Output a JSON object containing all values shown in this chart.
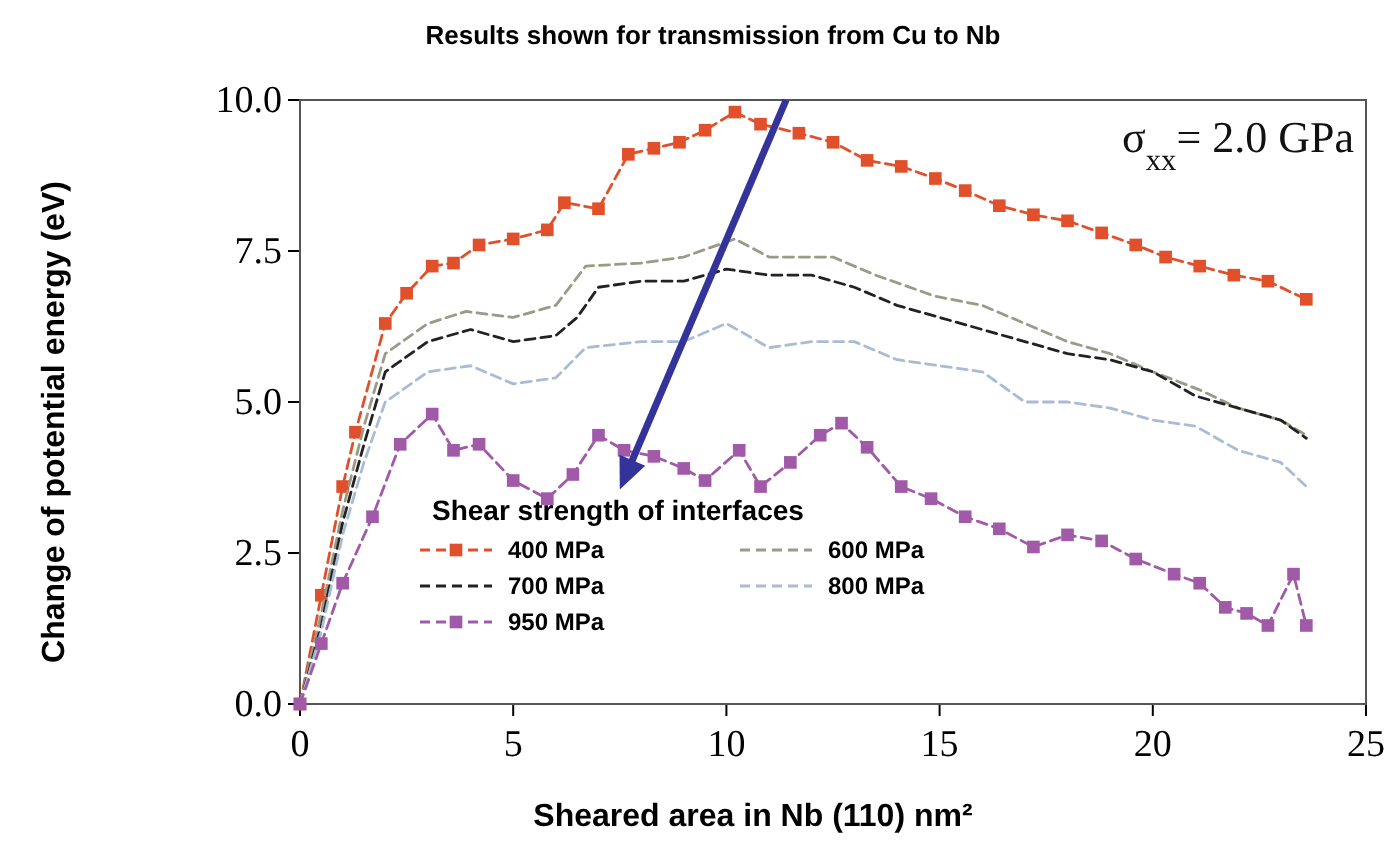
{
  "chart_data": {
    "type": "line",
    "title": "Results shown for transmission from Cu to Nb",
    "xlabel": "Sheared area in Nb (110)  nm²",
    "ylabel": "Change of potential energy (eV)",
    "legend_title": "Shear strength of interfaces",
    "legend": "bottom left",
    "line_style": "dashed",
    "annotations": [
      "σ$_{xx}$= 2.0 GPa"
    ],
    "xlim": [
      0,
      25
    ],
    "xticks": [
      0,
      5,
      10,
      15,
      20,
      25
    ],
    "ylim": [
      0,
      10
    ],
    "yticks": [
      {
        "value": 0,
        "label": "0.0"
      },
      {
        "value": 2.5,
        "label": "2.5"
      },
      {
        "value": 5,
        "label": "5.0"
      },
      {
        "value": 7.5,
        "label": "7.5"
      },
      {
        "value": 10,
        "label": "10.0"
      }
    ],
    "series": [
      {
        "name": "400 MPa",
        "color": "#e0502a",
        "marker": "square",
        "x": [
          0,
          0.5,
          1,
          1.3,
          2,
          2.5,
          3.1,
          3.6,
          4.2,
          5,
          5.8,
          6.2,
          7,
          7.7,
          8.3,
          8.9,
          9.5,
          10.2,
          10.8,
          11.7,
          12.5,
          13.3,
          14.1,
          14.9,
          15.6,
          16.4,
          17.2,
          18,
          18.8,
          19.6,
          20.3,
          21.1,
          21.9,
          22.7,
          23.6
        ],
        "values": [
          0,
          1.8,
          3.6,
          4.5,
          6.3,
          6.8,
          7.25,
          7.3,
          7.6,
          7.7,
          7.85,
          8.3,
          8.2,
          9.1,
          9.2,
          9.3,
          9.5,
          9.8,
          9.6,
          9.45,
          9.3,
          9.0,
          8.9,
          8.7,
          8.5,
          8.25,
          8.1,
          8.0,
          7.8,
          7.6,
          7.4,
          7.25,
          7.1,
          7.0,
          6.7
        ]
      },
      {
        "name": "600 MPa",
        "color": "#9a9a86",
        "marker": "none",
        "x": [
          0,
          0.5,
          1,
          1.5,
          2,
          3,
          3.9,
          5,
          6,
          6.7,
          8,
          9,
          10.2,
          11,
          12.5,
          13.5,
          14.9,
          16,
          17,
          18,
          19,
          20,
          21.1,
          22,
          23,
          23.6
        ],
        "values": [
          0,
          1.5,
          3.2,
          4.6,
          5.8,
          6.3,
          6.5,
          6.4,
          6.6,
          7.25,
          7.3,
          7.4,
          7.7,
          7.4,
          7.4,
          7.1,
          6.75,
          6.6,
          6.3,
          6.0,
          5.8,
          5.5,
          5.2,
          4.9,
          4.7,
          4.45
        ]
      },
      {
        "name": "700 MPa",
        "color": "#222222",
        "marker": "none",
        "x": [
          0,
          0.5,
          1,
          1.5,
          2,
          3,
          4,
          5,
          6,
          6.5,
          7,
          8,
          9,
          10,
          11,
          12,
          13,
          14,
          15,
          16,
          17,
          18,
          19,
          20,
          21,
          22,
          23,
          23.6
        ],
        "values": [
          0,
          1.3,
          3.0,
          4.3,
          5.5,
          6.0,
          6.2,
          6.0,
          6.1,
          6.4,
          6.9,
          7.0,
          7.0,
          7.2,
          7.1,
          7.1,
          6.9,
          6.6,
          6.4,
          6.2,
          6.0,
          5.8,
          5.7,
          5.5,
          5.1,
          4.9,
          4.7,
          4.4
        ]
      },
      {
        "name": "800 MPa",
        "color": "#a8bcd6",
        "marker": "none",
        "x": [
          0,
          0.5,
          1,
          1.5,
          2,
          3,
          4,
          5,
          6,
          6.7,
          8,
          9,
          10,
          11,
          12,
          13,
          14,
          15,
          16,
          17,
          18,
          19,
          20,
          21,
          22,
          23,
          23.6
        ],
        "values": [
          0,
          1.2,
          2.8,
          4.0,
          5.0,
          5.5,
          5.6,
          5.3,
          5.4,
          5.9,
          6.0,
          6.0,
          6.3,
          5.9,
          6.0,
          6.0,
          5.7,
          5.6,
          5.5,
          5.0,
          5.0,
          4.9,
          4.7,
          4.6,
          4.2,
          4.0,
          3.6
        ]
      },
      {
        "name": "950 MPa",
        "color": "#a05aa8",
        "marker": "square",
        "x": [
          0,
          0.5,
          1,
          1.7,
          2.35,
          3.1,
          3.6,
          4.2,
          5,
          5.8,
          6.4,
          7,
          7.6,
          8.3,
          9,
          9.5,
          10.3,
          10.8,
          11.5,
          12.2,
          12.7,
          13.3,
          14.1,
          14.8,
          15.6,
          16.4,
          17.2,
          18,
          18.8,
          19.6,
          20.5,
          21.1,
          21.7,
          22.2,
          22.7,
          23.3,
          23.6
        ],
        "values": [
          0,
          1.0,
          2.0,
          3.1,
          4.3,
          4.8,
          4.2,
          4.3,
          3.7,
          3.4,
          3.8,
          4.45,
          4.2,
          4.1,
          3.9,
          3.7,
          4.2,
          3.6,
          4.0,
          4.45,
          4.65,
          4.25,
          3.6,
          3.4,
          3.1,
          2.9,
          2.6,
          2.8,
          2.7,
          2.4,
          2.15,
          2.0,
          1.6,
          1.5,
          1.3,
          2.15,
          1.3
        ]
      }
    ]
  }
}
